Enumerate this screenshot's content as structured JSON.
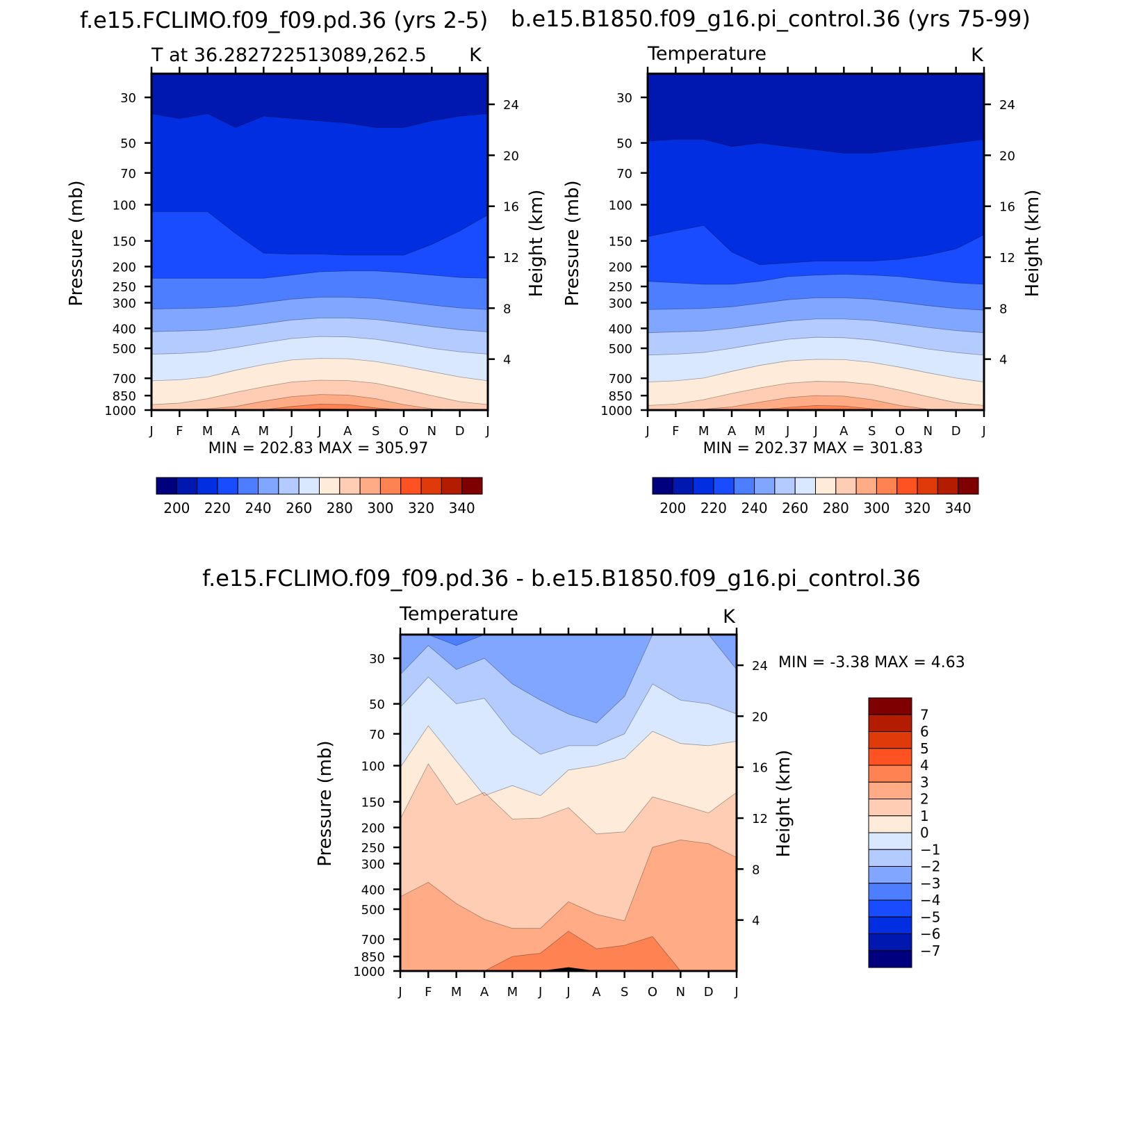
{
  "colors": {
    "cbar_abs": [
      "#00007f",
      "#0018b0",
      "#002ee0",
      "#1a4cff",
      "#4d7eff",
      "#80a6ff",
      "#b3cbff",
      "#d9e8ff",
      "#ffebd9",
      "#ffcdb3",
      "#ffab85",
      "#ff8252",
      "#ff5222",
      "#e03a0a",
      "#b31c00",
      "#7f0000"
    ],
    "cbar_diff": [
      "#00007f",
      "#0018b0",
      "#002ee0",
      "#1a4cff",
      "#4d7eff",
      "#80a6ff",
      "#b3cbff",
      "#d9e8ff",
      "#ffebd9",
      "#ffcdb3",
      "#ffab85",
      "#ff8252",
      "#ff5222",
      "#e03a0a",
      "#b31c00",
      "#7f0000"
    ]
  },
  "chart_data": [
    {
      "type": "contour",
      "title": "f.e15.FCLIMO.f09_f09.pd.36 (yrs 2-5)",
      "subtitle_left": "T at 36.282722513089,262.5",
      "subtitle_right": "K",
      "ylabel": "Pressure (mb)",
      "ylabel_right": "Height (km)",
      "months": [
        "J",
        "F",
        "M",
        "A",
        "M",
        "J",
        "J",
        "A",
        "S",
        "O",
        "N",
        "D",
        "J"
      ],
      "pressure_ticks": [
        30,
        50,
        70,
        100,
        150,
        200,
        250,
        300,
        400,
        500,
        700,
        850,
        1000
      ],
      "pressure_tick_labels": [
        "30",
        "50",
        "70",
        "100",
        "150",
        "200",
        "250",
        "300",
        "400",
        "500",
        "700",
        "850",
        "1000"
      ],
      "height_ticks_km": [
        4,
        8,
        12,
        16,
        20,
        24
      ],
      "height_tick_labels": [
        "4",
        "8",
        "12",
        "16",
        "20",
        "24"
      ],
      "ylim_mb": [
        23,
        1000
      ],
      "contour_levels": [
        195,
        200,
        210,
        220,
        230,
        240,
        250,
        260,
        270,
        280,
        290,
        300
      ],
      "boundaries_mb": [
        [
          36,
          38,
          36,
          42,
          37,
          38,
          39,
          40,
          42,
          42,
          39,
          37,
          36
        ],
        [
          108,
          108,
          108,
          138,
          172,
          174,
          174,
          176,
          176,
          176,
          156,
          134,
          112
        ],
        [
          228,
          228,
          228,
          228,
          228,
          220,
          212,
          210,
          210,
          214,
          220,
          226,
          228
        ],
        [
          322,
          320,
          318,
          312,
          300,
          288,
          282,
          282,
          286,
          296,
          308,
          318,
          324
        ],
        [
          415,
          412,
          408,
          396,
          380,
          364,
          356,
          356,
          362,
          376,
          392,
          406,
          416
        ],
        [
          534,
          530,
          520,
          496,
          470,
          448,
          438,
          440,
          452,
          474,
          500,
          520,
          534
        ],
        [
          720,
          712,
          690,
          640,
          600,
          570,
          560,
          562,
          580,
          612,
          650,
          690,
          720
        ],
        [
          940,
          925,
          880,
          820,
          770,
          730,
          715,
          718,
          740,
          790,
          850,
          910,
          940
        ],
        [
          1000,
          995,
          985,
          960,
          905,
          860,
          840,
          845,
          880,
          940,
          985,
          1000,
          1000
        ],
        [
          1000,
          1000,
          1000,
          1000,
          995,
          960,
          935,
          940,
          975,
          1000,
          1000,
          1000,
          1000
        ],
        [
          1000,
          1000,
          1000,
          1000,
          1000,
          1000,
          985,
          990,
          1000,
          1000,
          1000,
          1000,
          1000
        ]
      ],
      "min_max_text": "MIN = 202.83 MAX = 305.97",
      "colorbar_labels": [
        "200",
        "220",
        "240",
        "260",
        "280",
        "300",
        "320",
        "340"
      ]
    },
    {
      "type": "contour",
      "title": "b.e15.B1850.f09_g16.pi_control.36 (yrs 75-99)",
      "subtitle_left": "Temperature",
      "subtitle_right": "K",
      "ylabel": "Pressure (mb)",
      "ylabel_right": "Height (km)",
      "months": [
        "J",
        "F",
        "M",
        "A",
        "M",
        "J",
        "J",
        "A",
        "S",
        "O",
        "N",
        "D",
        "J"
      ],
      "pressure_ticks": [
        30,
        50,
        70,
        100,
        150,
        200,
        250,
        300,
        400,
        500,
        700,
        850,
        1000
      ],
      "pressure_tick_labels": [
        "30",
        "50",
        "70",
        "100",
        "150",
        "200",
        "250",
        "300",
        "400",
        "500",
        "700",
        "850",
        "1000"
      ],
      "height_ticks_km": [
        4,
        8,
        12,
        16,
        20,
        24
      ],
      "height_tick_labels": [
        "4",
        "8",
        "12",
        "16",
        "20",
        "24"
      ],
      "ylim_mb": [
        23,
        1000
      ],
      "contour_levels": [
        195,
        200,
        210,
        220,
        230,
        240,
        250,
        260,
        270,
        280,
        290,
        300
      ],
      "boundaries_mb": [
        [
          49,
          48,
          48,
          52,
          50,
          52,
          54,
          56,
          56,
          54,
          52,
          50,
          48
        ],
        [
          143,
          134,
          126,
          170,
          196,
          192,
          188,
          188,
          188,
          184,
          176,
          164,
          140
        ],
        [
          236,
          240,
          244,
          244,
          236,
          224,
          220,
          218,
          220,
          224,
          232,
          240,
          244
        ],
        [
          324,
          322,
          320,
          314,
          302,
          290,
          284,
          284,
          288,
          298,
          310,
          320,
          326
        ],
        [
          420,
          416,
          412,
          400,
          384,
          368,
          360,
          360,
          366,
          380,
          396,
          410,
          420
        ],
        [
          540,
          534,
          524,
          500,
          474,
          452,
          442,
          444,
          456,
          478,
          504,
          524,
          540
        ],
        [
          730,
          720,
          698,
          648,
          606,
          576,
          566,
          568,
          586,
          618,
          658,
          698,
          730
        ],
        [
          950,
          935,
          890,
          830,
          780,
          740,
          725,
          728,
          750,
          800,
          860,
          920,
          950
        ],
        [
          1000,
          998,
          990,
          965,
          915,
          870,
          850,
          855,
          890,
          950,
          990,
          1000,
          1000
        ],
        [
          1000,
          1000,
          1000,
          1000,
          998,
          970,
          950,
          955,
          985,
          1000,
          1000,
          1000,
          1000
        ],
        [
          1000,
          1000,
          1000,
          1000,
          1000,
          1000,
          990,
          995,
          1000,
          1000,
          1000,
          1000,
          1000
        ]
      ],
      "min_max_text": "MIN = 202.37 MAX = 301.83",
      "colorbar_labels": [
        "200",
        "220",
        "240",
        "260",
        "280",
        "300",
        "320",
        "340"
      ]
    },
    {
      "type": "contour",
      "title": "f.e15.FCLIMO.f09_f09.pd.36 - b.e15.B1850.f09_g16.pi_control.36",
      "subtitle_left": "Temperature",
      "subtitle_right": "K",
      "ylabel": "Pressure (mb)",
      "ylabel_right": "Height (km)",
      "months": [
        "J",
        "F",
        "M",
        "A",
        "M",
        "J",
        "J",
        "A",
        "S",
        "O",
        "N",
        "D",
        "J"
      ],
      "pressure_ticks": [
        30,
        50,
        70,
        100,
        150,
        200,
        250,
        300,
        400,
        500,
        700,
        850,
        1000
      ],
      "pressure_tick_labels": [
        "30",
        "50",
        "70",
        "100",
        "150",
        "200",
        "250",
        "300",
        "400",
        "500",
        "700",
        "850",
        "1000"
      ],
      "height_ticks_km": [
        4,
        8,
        12,
        16,
        20,
        24
      ],
      "height_tick_labels": [
        "4",
        "8",
        "12",
        "16",
        "20",
        "24"
      ],
      "ylim_mb": [
        23,
        1000
      ],
      "contour_levels": [
        -3,
        -2,
        -1,
        0,
        1,
        2,
        3
      ],
      "boundaries_mb": [
        [
          23,
          23,
          26,
          23,
          23,
          23,
          23,
          23,
          23,
          23,
          23,
          23,
          23
        ],
        [
          36,
          26,
          34,
          30,
          40,
          48,
          56,
          62,
          46,
          23,
          23,
          23,
          34
        ],
        [
          52,
          37,
          50,
          47,
          70,
          88,
          80,
          80,
          70,
          40,
          48,
          50,
          56
        ],
        [
          102,
          64,
          95,
          140,
          125,
          140,
          105,
          100,
          92,
          68,
          78,
          80,
          76
        ],
        [
          182,
          98,
          155,
          135,
          182,
          180,
          160,
          215,
          210,
          142,
          155,
          170,
          135
        ],
        [
          435,
          370,
          470,
          560,
          620,
          620,
          460,
          530,
          570,
          250,
          230,
          240,
          280
        ],
        [
          1000,
          1000,
          1000,
          1000,
          850,
          820,
          640,
          780,
          750,
          680,
          1000,
          1000,
          1000
        ],
        [
          1000,
          1000,
          1000,
          1000,
          1000,
          1000,
          960,
          1000,
          1000,
          1000,
          1000,
          1000,
          1000
        ]
      ],
      "min_max_text": "MIN = -3.38 MAX = 4.63",
      "colorbar_labels": [
        "7",
        "6",
        "5",
        "4",
        "3",
        "2",
        "1",
        "0",
        "-1",
        "-2",
        "-3",
        "-4",
        "-5",
        "-6",
        "-7"
      ]
    }
  ]
}
